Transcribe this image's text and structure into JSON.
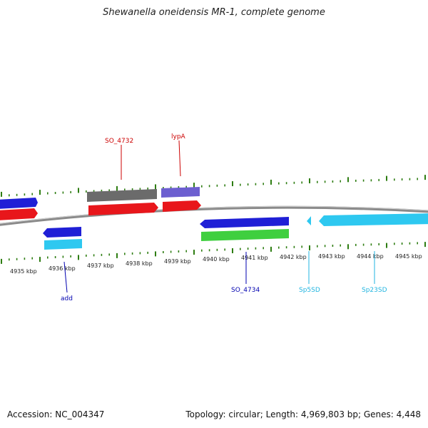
{
  "title": "Shewanella oneidensis MR-1, complete genome",
  "footer": {
    "accession": "Accession: NC_004347",
    "stats": "Topology: circular; Length: 4,969,803 bp; Genes: 4,448"
  },
  "colors": {
    "backbone": "#8a8a8a",
    "ticks": "#2e7d12",
    "blue": "#1f1fd6",
    "red": "#e8161b",
    "grey": "#6b6b6b",
    "purple": "#6c5fd0",
    "green": "#3fcf3f",
    "cyan": "#2ec8f0",
    "label_red": "#cc0000",
    "label_blue": "#0000b0",
    "label_cyan": "#22b5e0"
  },
  "scale": {
    "tick_labels": [
      "4935 kbp",
      "4936 kbp",
      "4937 kbp",
      "4938 kbp",
      "4939 kbp",
      "4940 kbp",
      "4941 kbp",
      "4942 kbp",
      "4943 kbp",
      "4944 kbp",
      "4945 kbp"
    ]
  },
  "genes": [
    {
      "name": "SO_4732",
      "color": "label_red"
    },
    {
      "name": "lypA",
      "color": "label_red"
    },
    {
      "name": "add",
      "color": "label_blue"
    },
    {
      "name": "SO_4734",
      "color": "label_blue"
    },
    {
      "name": "Sp5SD",
      "color": "label_cyan"
    },
    {
      "name": "Sp23SD",
      "color": "label_cyan"
    }
  ]
}
